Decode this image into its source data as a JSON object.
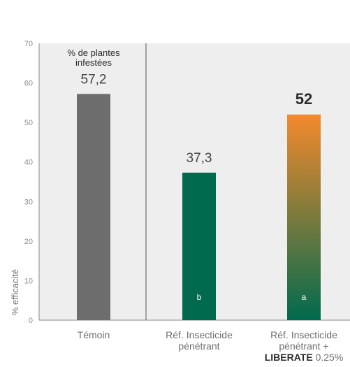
{
  "chart_data": {
    "type": "bar",
    "title": "",
    "xlabel": "",
    "ylabel": "% efficacité",
    "ylim": [
      0,
      70
    ],
    "yticks": [
      0,
      10,
      20,
      30,
      40,
      50,
      60,
      70
    ],
    "grid": false,
    "annotation": [
      "% de plantes",
      "infestées"
    ],
    "categories": [
      {
        "lines": [
          [
            {
              "text": "Témoin"
            }
          ]
        ]
      },
      {
        "lines": [
          [
            {
              "text": "Réf. Insecticide"
            }
          ],
          [
            {
              "text": "pénétrant"
            }
          ]
        ]
      },
      {
        "lines": [
          [
            {
              "text": "Réf. Insecticide"
            }
          ],
          [
            {
              "text": "pénétrant +"
            }
          ],
          [
            {
              "text": "LIBERATE",
              "bold": true
            },
            {
              "text": " 0.25%"
            }
          ]
        ]
      }
    ],
    "values": [
      57.2,
      37.3,
      52
    ],
    "value_labels": [
      "57,2",
      "37,3",
      "52"
    ],
    "significance_letters": [
      "",
      "b",
      "a"
    ],
    "colors": {
      "bar_1": "#6d6d6d",
      "bar_2": "#006a4e",
      "bar_3_top": "#f48a2c",
      "bar_3_bottom": "#006a4e",
      "axis": "#8a8a8a",
      "panel_background": "#eeeeee",
      "divider": "#555555"
    }
  }
}
